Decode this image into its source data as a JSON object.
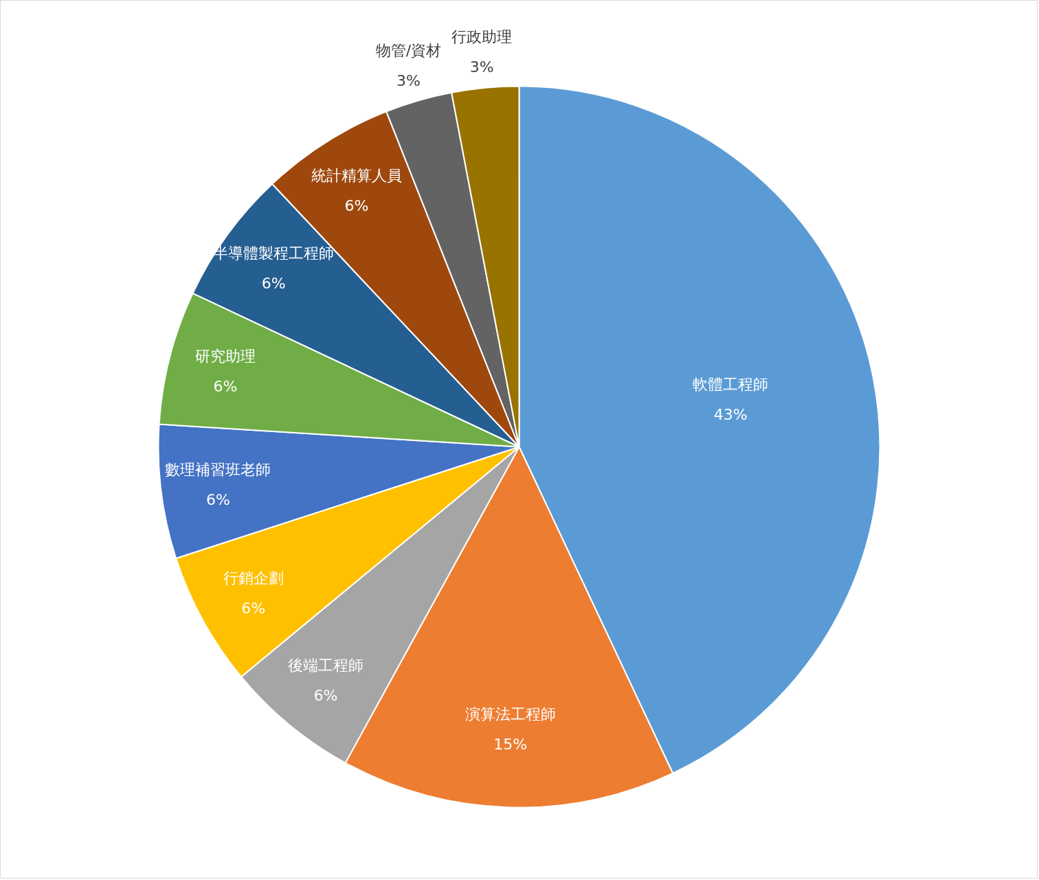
{
  "chart_data": {
    "type": "pie",
    "categories": [
      "軟體工程師",
      "演算法工程師",
      "後端工程師",
      "行銷企劃",
      "數理補習班老師",
      "研究助理",
      "半導體製程工程師",
      "統計精算人員",
      "物管/資材",
      "行政助理"
    ],
    "values": [
      43,
      15,
      6,
      6,
      6,
      6,
      6,
      6,
      3,
      3
    ],
    "value_labels": [
      "43%",
      "15%",
      "6%",
      "6%",
      "6%",
      "6%",
      "6%",
      "6%",
      "3%",
      "3%"
    ],
    "colors": [
      "#5b9bd5",
      "#ed7d31",
      "#a5a5a5",
      "#ffc000",
      "#4472c4",
      "#70ad47",
      "#255e91",
      "#9e480e",
      "#636363",
      "#997300"
    ]
  }
}
